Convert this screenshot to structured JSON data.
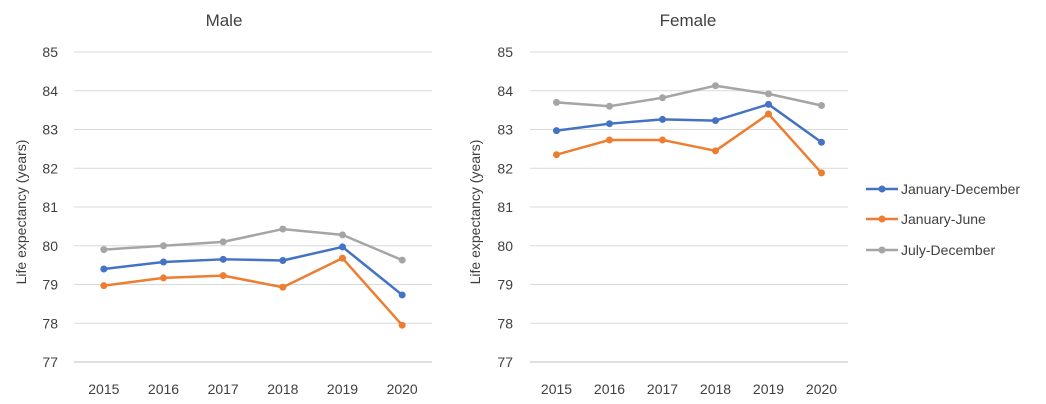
{
  "chart_data": [
    {
      "type": "line",
      "title": "Male",
      "xlabel": "",
      "ylabel": "Life expectancy (years)",
      "ylim": [
        77,
        85
      ],
      "yticks": [
        77,
        78,
        79,
        80,
        81,
        82,
        83,
        84,
        85
      ],
      "grid": true,
      "categories": [
        "2015",
        "2016",
        "2017",
        "2018",
        "2019",
        "2020"
      ],
      "series": [
        {
          "name": "January-December",
          "color": "#4472C4",
          "values": [
            79.4,
            79.58,
            79.65,
            79.62,
            79.97,
            78.73
          ]
        },
        {
          "name": "January-June",
          "color": "#ED7D31",
          "values": [
            78.97,
            79.17,
            79.23,
            78.93,
            79.68,
            77.95
          ]
        },
        {
          "name": "July-December",
          "color": "#A5A5A5",
          "values": [
            79.9,
            80.0,
            80.1,
            80.43,
            80.28,
            79.63
          ]
        }
      ]
    },
    {
      "type": "line",
      "title": "Female",
      "xlabel": "",
      "ylabel": "Life expectancy (years)",
      "ylim": [
        77,
        85
      ],
      "yticks": [
        77,
        78,
        79,
        80,
        81,
        82,
        83,
        84,
        85
      ],
      "grid": true,
      "categories": [
        "2015",
        "2016",
        "2017",
        "2018",
        "2019",
        "2020"
      ],
      "series": [
        {
          "name": "January-December",
          "color": "#4472C4",
          "values": [
            82.97,
            83.15,
            83.26,
            83.23,
            83.65,
            82.67
          ]
        },
        {
          "name": "January-June",
          "color": "#ED7D31",
          "values": [
            82.35,
            82.73,
            82.73,
            82.45,
            83.4,
            81.88
          ]
        },
        {
          "name": "July-December",
          "color": "#A5A5A5",
          "values": [
            83.7,
            83.6,
            83.82,
            84.13,
            83.92,
            83.62
          ]
        }
      ]
    }
  ],
  "legend": {
    "placement": "right",
    "entries": [
      {
        "label": "January-December",
        "color": "#4472C4"
      },
      {
        "label": "January-June",
        "color": "#ED7D31"
      },
      {
        "label": "July-December",
        "color": "#A5A5A5"
      }
    ]
  }
}
